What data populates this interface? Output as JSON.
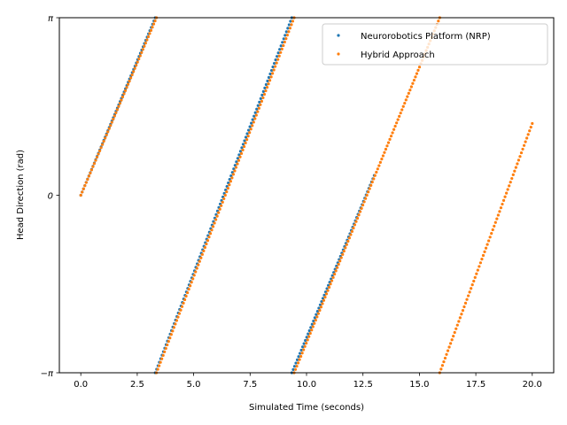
{
  "chart_data": {
    "type": "scatter",
    "xlabel": "Simulated Time (seconds)",
    "ylabel": "Head Direction (rad)",
    "xlim": [
      -0.95,
      20.95
    ],
    "ylim": [
      -3.14159,
      3.14159
    ],
    "x_ticks": [
      0,
      2.5,
      5,
      7.5,
      10,
      12.5,
      15,
      17.5,
      20
    ],
    "x_tick_labels": [
      "0.0",
      "2.5",
      "5.0",
      "7.5",
      "10.0",
      "12.5",
      "15.0",
      "17.5",
      "20.0"
    ],
    "y_ticks": [
      -3.14159,
      0,
      3.14159
    ],
    "y_tick_labels": [
      "−π",
      "0",
      "π"
    ],
    "legend_position": "top-right",
    "grid": false,
    "series": [
      {
        "name": "Neurorobotics Platform (NRP)",
        "color": "#1f77b4",
        "segments": [
          {
            "x_start": 0.0,
            "x_end": 3.3,
            "y_start": 0.0,
            "y_end": 3.14159
          },
          {
            "x_start": 3.3,
            "x_end": 9.35,
            "y_start": -3.14159,
            "y_end": 3.14159
          },
          {
            "x_start": 9.35,
            "x_end": 13.0,
            "y_start": -3.14159,
            "y_end": 0.35
          }
        ]
      },
      {
        "name": "Hybrid Approach",
        "color": "#ff7f0e",
        "segments": [
          {
            "x_start": 0.0,
            "x_end": 3.35,
            "y_start": 0.0,
            "y_end": 3.14159
          },
          {
            "x_start": 3.35,
            "x_end": 9.45,
            "y_start": -3.14159,
            "y_end": 3.14159
          },
          {
            "x_start": 9.45,
            "x_end": 15.9,
            "y_start": -3.14159,
            "y_end": 3.14159
          },
          {
            "x_start": 15.9,
            "x_end": 20.0,
            "y_start": -3.14159,
            "y_end": 1.27
          }
        ]
      }
    ]
  }
}
